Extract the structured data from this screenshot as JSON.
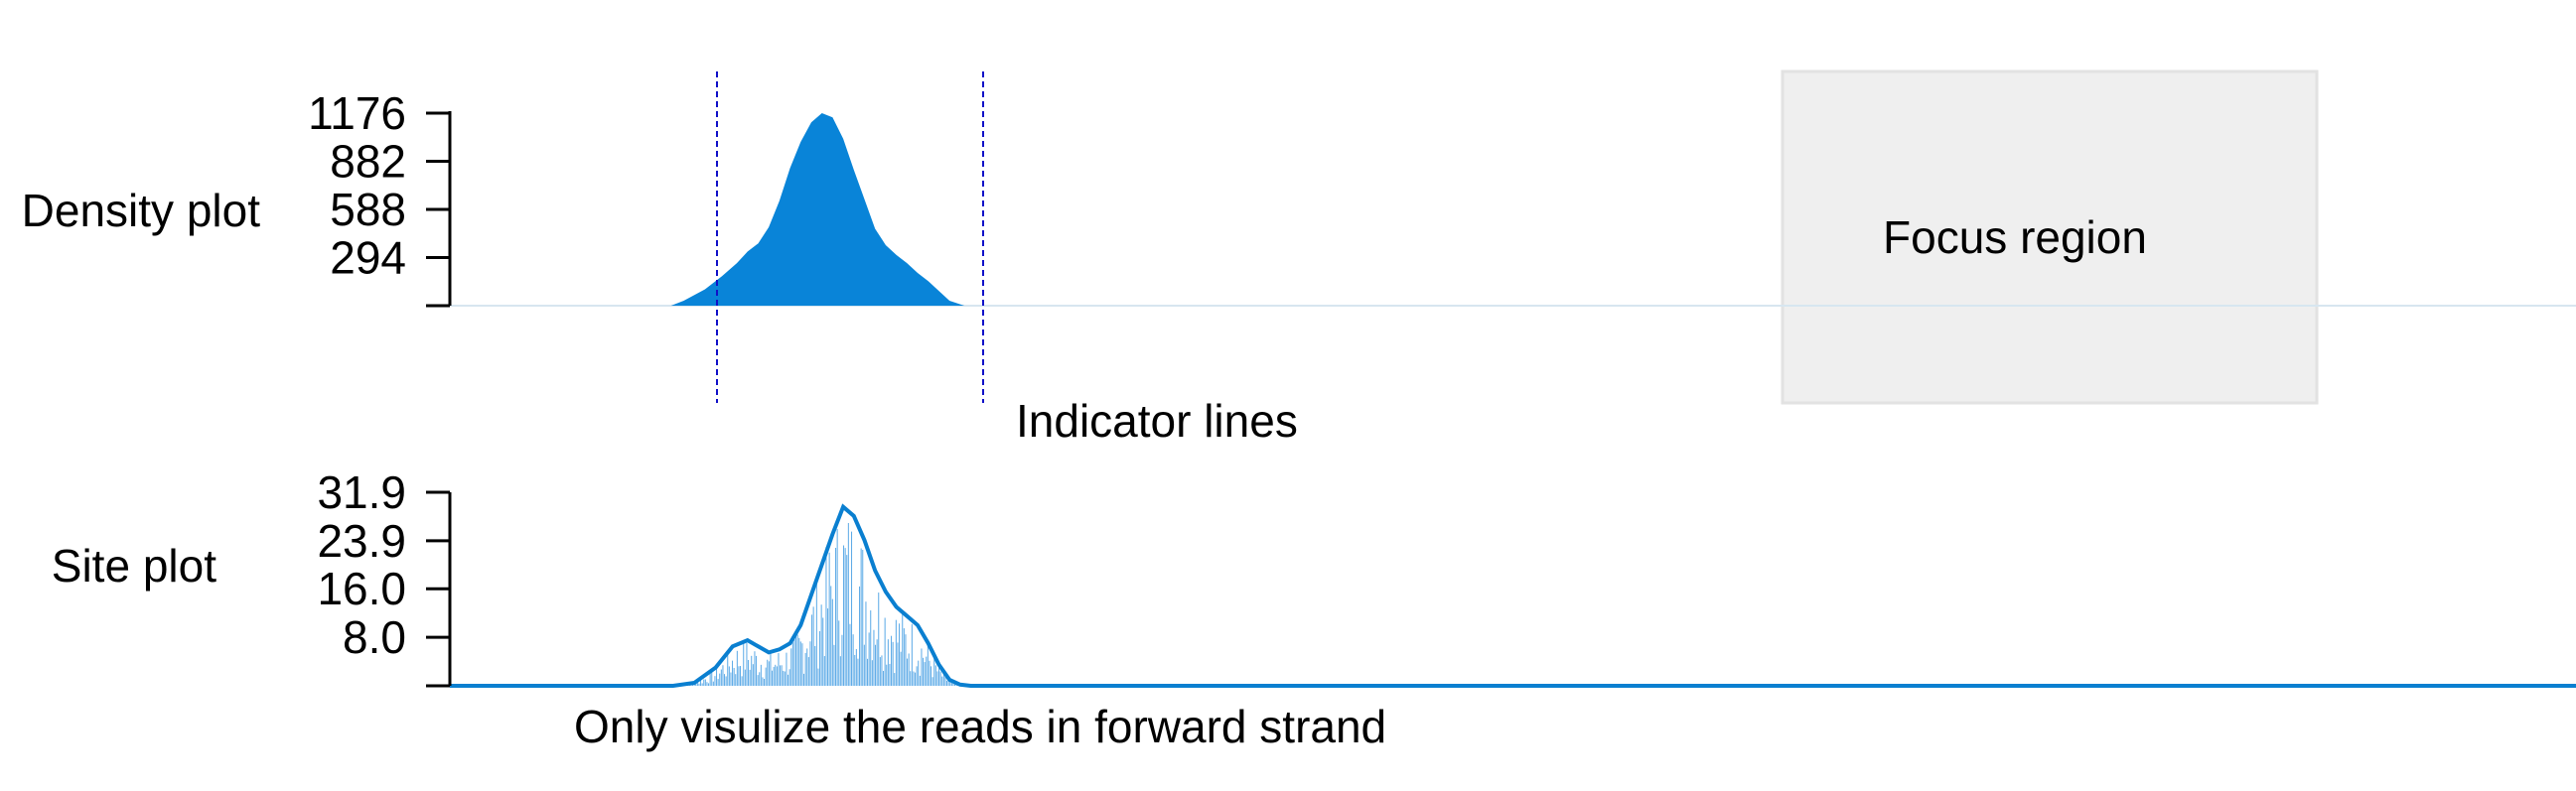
{
  "colors": {
    "density_fill": "#0984d8",
    "site_line": "#0a7fd0",
    "site_bars": "#5aa9e6",
    "indicator": "#1010c8",
    "focus_fill": "#efefef",
    "focus_border": "#e2e2e2",
    "axis": "#000000",
    "baseline": "#d7e6f0"
  },
  "annotations": {
    "focus_region": "Focus region",
    "indicator_lines": "Indicator lines",
    "strand_note": "Only visulize the reads in forward strand"
  },
  "chart_data": [
    {
      "type": "area",
      "ylabel": "Density plot",
      "yticks": [
        "294",
        "588",
        "882",
        "1176"
      ],
      "ylim": [
        0,
        1176
      ],
      "xlim": [
        0,
        100
      ],
      "x": [
        10.4,
        11,
        12,
        12.8,
        13.5,
        14,
        14.5,
        15,
        15.5,
        16,
        16.5,
        17,
        17.5,
        18,
        18.5,
        19,
        19.5,
        20,
        20.5,
        21,
        21.5,
        22,
        22.5,
        23,
        23.5,
        24.2
      ],
      "y": [
        0,
        30,
        100,
        180,
        260,
        330,
        380,
        480,
        640,
        840,
        1000,
        1120,
        1176,
        1150,
        1020,
        830,
        650,
        470,
        370,
        310,
        260,
        200,
        150,
        90,
        30,
        0
      ],
      "grid": false
    },
    {
      "type": "line",
      "ylabel": "Site plot",
      "yticks": [
        "8.0",
        "16.0",
        "23.9",
        "31.9"
      ],
      "ylim": [
        0,
        31.9
      ],
      "xlim": [
        0,
        100
      ],
      "x": [
        0,
        8,
        10.5,
        11.5,
        12.5,
        13.3,
        14,
        14.5,
        15,
        15.5,
        16,
        16.5,
        17.3,
        18,
        18.5,
        19,
        19.5,
        20,
        20.5,
        21,
        21.5,
        22,
        22.5,
        23,
        23.5,
        24,
        24.5,
        25,
        30,
        100
      ],
      "y": [
        0,
        0,
        0,
        0.5,
        3,
        6.5,
        7.5,
        6.5,
        5.5,
        6,
        7,
        10,
        18,
        25,
        29.5,
        28,
        24,
        19,
        15.5,
        13,
        11.5,
        10,
        7,
        3.5,
        1,
        0.2,
        0,
        0,
        0,
        0
      ],
      "grid": false
    }
  ]
}
